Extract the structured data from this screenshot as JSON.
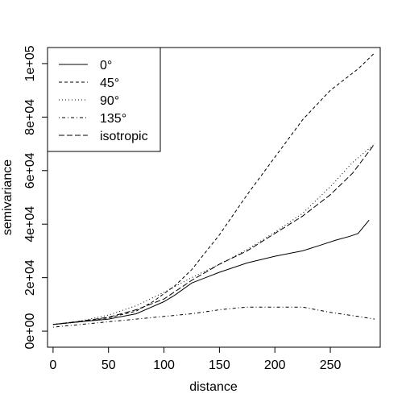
{
  "chart_data": {
    "type": "line",
    "xlabel": "distance",
    "ylabel": "semivariance",
    "xlim": [
      -5,
      295
    ],
    "ylim": [
      -6000,
      106000
    ],
    "x_ticks": [
      0,
      50,
      100,
      150,
      200,
      250
    ],
    "x_tick_labels": [
      "0",
      "50",
      "100",
      "150",
      "200",
      "250"
    ],
    "y_ticks": [
      0,
      20000,
      40000,
      60000,
      80000,
      100000
    ],
    "y_tick_labels": [
      "0e+00",
      "2e+04",
      "4e+04",
      "6e+04",
      "8e+04",
      "1e+05"
    ],
    "grid": false,
    "legend_position": "top-left",
    "series": [
      {
        "name": "0°",
        "line_style": "solid",
        "x": [
          0,
          25,
          50,
          75,
          100,
          110,
          125,
          150,
          175,
          200,
          225,
          240,
          255,
          268,
          275,
          285
        ],
        "y": [
          2500,
          3500,
          4500,
          6500,
          11000,
          13500,
          18000,
          22000,
          25500,
          28000,
          30000,
          32000,
          34000,
          35500,
          36500,
          41500
        ]
      },
      {
        "name": "45°",
        "line_style": "dashed",
        "x": [
          0,
          25,
          50,
          75,
          90,
          100,
          110,
          125,
          150,
          175,
          200,
          225,
          250,
          275,
          290
        ],
        "y": [
          2500,
          3500,
          5000,
          7500,
          11000,
          14000,
          17000,
          23000,
          36000,
          51000,
          65000,
          79000,
          90000,
          98000,
          104000
        ]
      },
      {
        "name": "90°",
        "line_style": "dotted",
        "x": [
          0,
          25,
          50,
          75,
          100,
          125,
          150,
          175,
          200,
          225,
          250,
          270,
          290
        ],
        "y": [
          2500,
          3800,
          6000,
          9500,
          14500,
          20000,
          25000,
          30500,
          37000,
          44000,
          54000,
          63000,
          70000
        ]
      },
      {
        "name": "135°",
        "line_style": "dotdash",
        "x": [
          0,
          25,
          50,
          75,
          100,
          125,
          150,
          175,
          200,
          225,
          250,
          275,
          290
        ],
        "y": [
          1500,
          2500,
          3500,
          4500,
          5500,
          6500,
          8000,
          9000,
          9000,
          9000,
          7000,
          5500,
          4500
        ]
      },
      {
        "name": "isotropic",
        "line_style": "longdash",
        "x": [
          0,
          25,
          50,
          75,
          100,
          125,
          150,
          175,
          200,
          225,
          250,
          270,
          290
        ],
        "y": [
          2500,
          3700,
          5200,
          8000,
          12000,
          19000,
          25000,
          30000,
          36500,
          43000,
          51000,
          59000,
          70000
        ]
      }
    ]
  }
}
